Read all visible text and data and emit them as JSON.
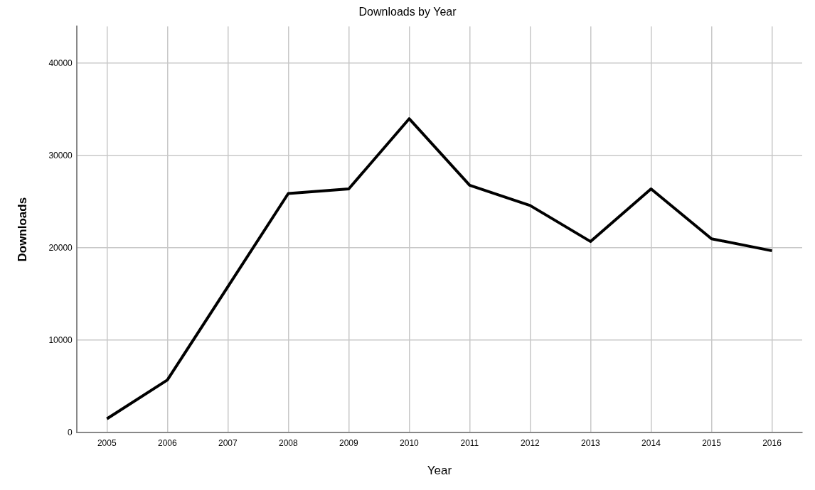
{
  "chart_data": {
    "type": "line",
    "title": "Downloads by Year",
    "xlabel": "Year",
    "ylabel": "Downloads",
    "categories": [
      "2005",
      "2006",
      "2007",
      "2008",
      "2009",
      "2010",
      "2011",
      "2012",
      "2013",
      "2014",
      "2015",
      "2016"
    ],
    "series": [
      {
        "color": "#000000",
        "values": [
          1500,
          5700,
          15800,
          25900,
          26400,
          34000,
          26800,
          24600,
          20700,
          26400,
          21000,
          19700
        ]
      }
    ],
    "ylim": [
      0,
      44000
    ],
    "yticks": [
      0,
      10000,
      20000,
      30000,
      40000
    ],
    "grid": true,
    "legend": false,
    "marker": "none",
    "line_style": "solid"
  }
}
